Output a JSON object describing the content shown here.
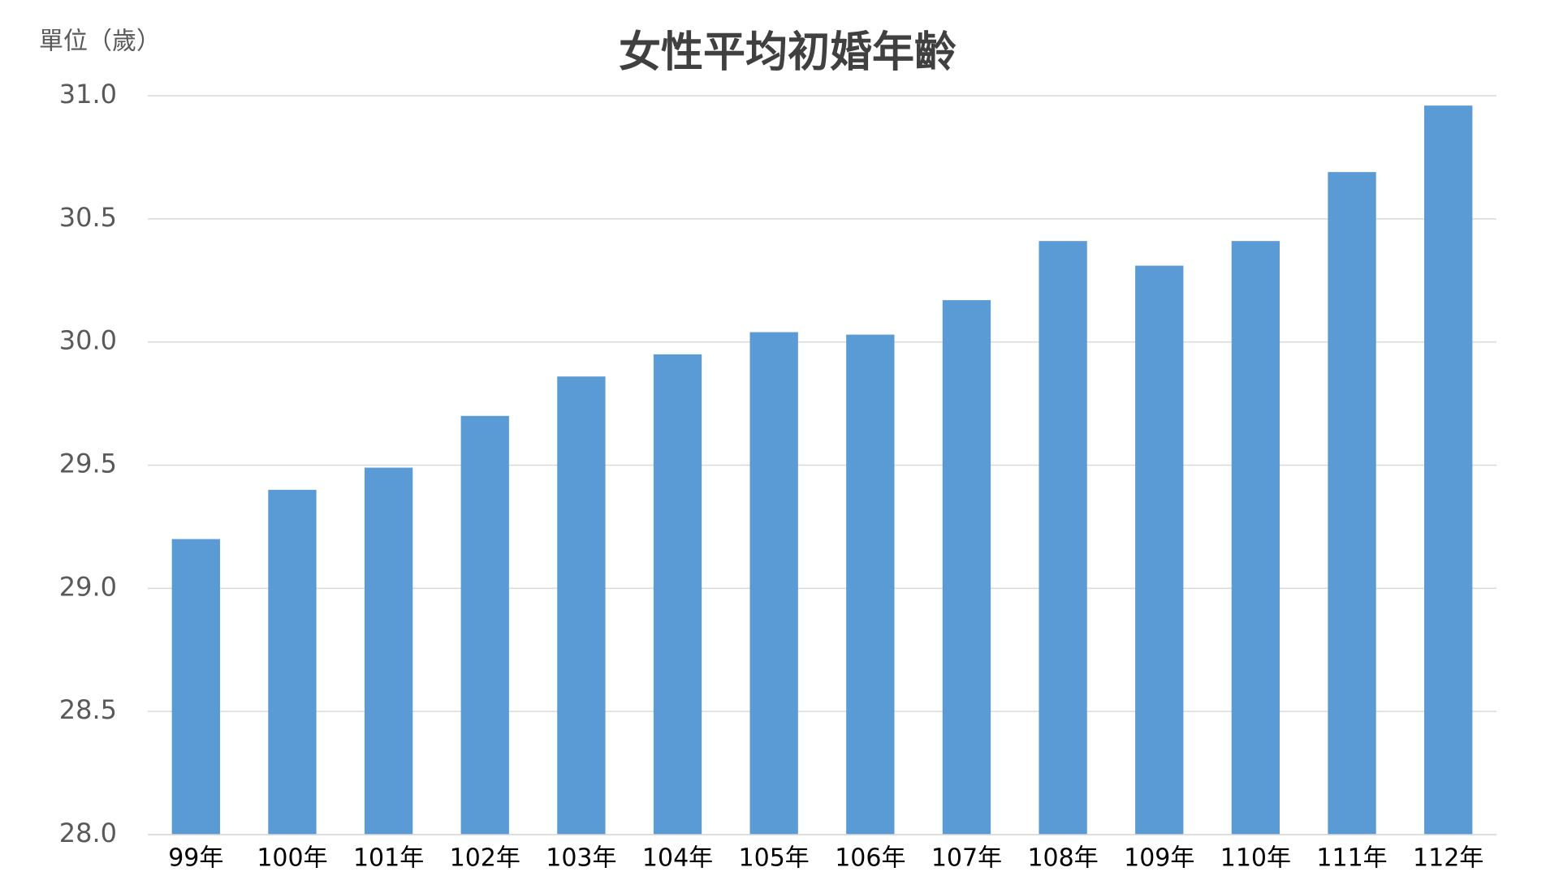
{
  "chart_data": {
    "type": "bar",
    "title": "女性平均初婚年齡",
    "y_label": "單位（歲）",
    "categories": [
      "99年",
      "100年",
      "101年",
      "102年",
      "103年",
      "104年",
      "105年",
      "106年",
      "107年",
      "108年",
      "109年",
      "110年",
      "111年",
      "112年"
    ],
    "values": [
      29.2,
      29.4,
      29.49,
      29.7,
      29.86,
      29.95,
      30.04,
      30.03,
      30.17,
      30.41,
      30.31,
      30.41,
      30.69,
      30.96
    ],
    "color": "#5b9bd5",
    "ylim": [
      28,
      31
    ],
    "yticks": [
      {
        "value": 28,
        "label": "28.0"
      },
      28.5,
      {
        "value": 29,
        "label": "29.0"
      },
      29.5,
      {
        "value": 30,
        "label": "30.0"
      },
      30.5,
      {
        "value": 31,
        "label": "31.0"
      }
    ],
    "grid": true
  }
}
